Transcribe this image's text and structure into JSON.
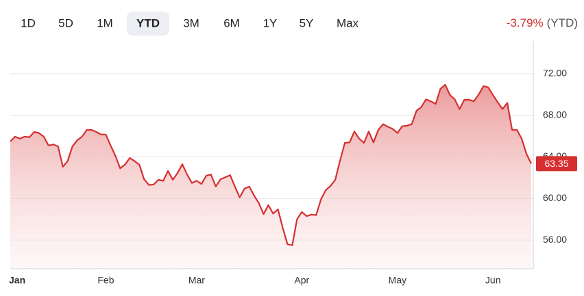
{
  "ranges": [
    "1D",
    "5D",
    "1M",
    "YTD",
    "3M",
    "6M",
    "1Y",
    "5Y",
    "Max"
  ],
  "selected_range": "YTD",
  "change": "-3.79%",
  "change_period": "(YTD)",
  "chart_data": {
    "type": "area",
    "color": "#d62f2f",
    "categories": [
      "Jan",
      null,
      null,
      null,
      null,
      null,
      null,
      null,
      null,
      null,
      null,
      null,
      null,
      null,
      null,
      null,
      null,
      null,
      null,
      null,
      "Feb",
      null,
      null,
      null,
      null,
      null,
      null,
      null,
      null,
      null,
      null,
      null,
      null,
      null,
      null,
      null,
      null,
      null,
      null,
      "Mar",
      null,
      null,
      null,
      null,
      null,
      null,
      null,
      null,
      null,
      null,
      null,
      null,
      null,
      null,
      null,
      null,
      null,
      null,
      null,
      null,
      null,
      "Apr",
      null,
      null,
      null,
      null,
      null,
      null,
      null,
      null,
      null,
      null,
      null,
      null,
      null,
      null,
      null,
      null,
      null,
      null,
      null,
      "May",
      null,
      null,
      null,
      null,
      null,
      null,
      null,
      null,
      null,
      null,
      null,
      null,
      null,
      null,
      null,
      null,
      null,
      null,
      null,
      "Jun",
      null,
      null,
      null,
      null,
      null,
      null,
      null,
      null
    ],
    "values": [
      65.49,
      65.95,
      65.75,
      65.95,
      65.9,
      66.4,
      66.3,
      65.95,
      65.1,
      65.2,
      65.0,
      63.05,
      63.6,
      65.0,
      65.6,
      65.95,
      66.6,
      66.6,
      66.4,
      66.15,
      66.15,
      65.1,
      64.1,
      62.9,
      63.25,
      63.9,
      63.6,
      63.25,
      61.85,
      61.3,
      61.35,
      61.8,
      61.7,
      62.65,
      61.8,
      62.45,
      63.3,
      62.3,
      61.5,
      61.7,
      61.4,
      62.2,
      62.3,
      61.15,
      61.85,
      62.05,
      62.25,
      61.15,
      60.1,
      60.95,
      61.15,
      60.3,
      59.55,
      58.5,
      59.35,
      58.55,
      58.95,
      57.2,
      55.6,
      55.5,
      58.0,
      58.7,
      58.3,
      58.45,
      58.4,
      59.9,
      60.8,
      61.2,
      61.8,
      63.65,
      65.35,
      65.4,
      66.45,
      65.75,
      65.35,
      66.45,
      65.4,
      66.6,
      67.15,
      66.9,
      66.7,
      66.3,
      66.95,
      67.0,
      67.15,
      68.45,
      68.8,
      69.55,
      69.35,
      69.1,
      70.55,
      70.95,
      69.95,
      69.55,
      68.6,
      69.5,
      69.5,
      69.35,
      70.0,
      70.8,
      70.7,
      69.95,
      69.25,
      68.6,
      69.2,
      66.6,
      66.6,
      65.75,
      64.3,
      63.35
    ],
    "last_value_label": "63.35",
    "ylim": [
      53.25,
      75.15
    ],
    "yticks": [
      {
        "value": 56,
        "label": "56.00"
      },
      {
        "value": 60,
        "label": "60.00"
      },
      {
        "value": 64,
        "label": "64.00"
      },
      {
        "value": 68,
        "label": "68.00"
      },
      {
        "value": 72,
        "label": "72.00"
      }
    ],
    "grid": true
  }
}
